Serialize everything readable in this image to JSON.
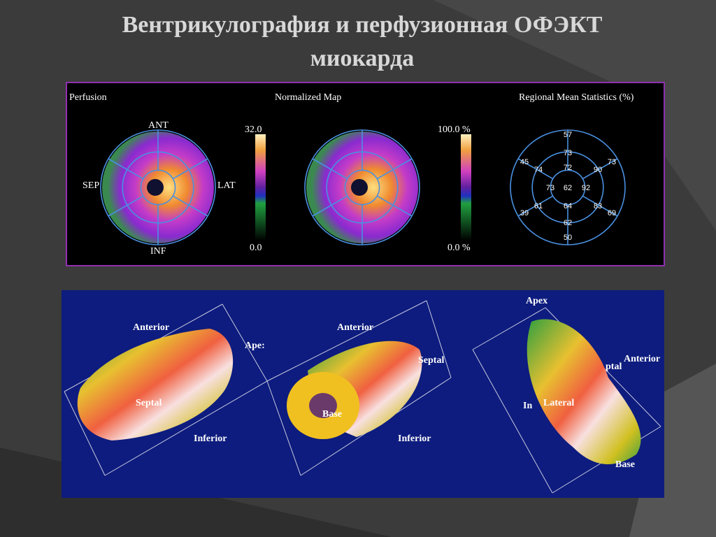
{
  "title": [
    "Вентрикулография и перфузионная ОФЭКТ",
    "миокарда"
  ],
  "polar_panel": {
    "perfusion": {
      "label": "Perfusion",
      "directions": [
        "ANT",
        "SEP",
        "LAT",
        "INF"
      ],
      "scale_max": "32.0",
      "scale_min": "0.0"
    },
    "normalized": {
      "label": "Normalized Map",
      "scale_max": "100.0 %",
      "scale_min": "0.0 %"
    },
    "statistics": {
      "label": "Regional Mean Statistics (%)",
      "segments": [
        57,
        73,
        72,
        45,
        74,
        90,
        73,
        73,
        62,
        92,
        61,
        64,
        83,
        39,
        69,
        62,
        50
      ]
    }
  },
  "render_panel": {
    "view_1": [
      "Anterior",
      "Ape:",
      "Septal",
      "Inferior"
    ],
    "view_2": [
      "Anterior",
      "Septal",
      "Base",
      "Inferior"
    ],
    "view_3": [
      "Apex",
      "Anterior",
      "ptal",
      "In",
      "Lateral",
      "Base"
    ]
  }
}
